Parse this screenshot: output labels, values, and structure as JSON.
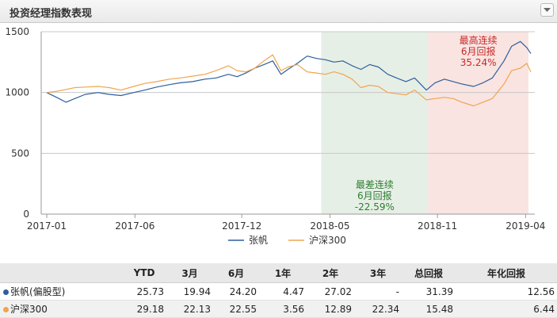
{
  "panel": {
    "title": "投资经理指数表现"
  },
  "chart_data": {
    "type": "line",
    "x_ticks": [
      "2017-01",
      "2017-06",
      "2017-12",
      "2018-05",
      "2018-11",
      "2019-04"
    ],
    "x_range": [
      "2017-01-03",
      "2019-04-12"
    ],
    "ylim": [
      0,
      1500
    ],
    "y_ticks": [
      0,
      500,
      1000,
      1500
    ],
    "grid": "horizontal",
    "legend_position": "bottom",
    "series": [
      {
        "name": "张帆",
        "color": "#2c5f9e",
        "points": [
          [
            "2017-01-03",
            1000
          ],
          [
            "2017-01-20",
            960
          ],
          [
            "2017-02-05",
            920
          ],
          [
            "2017-02-20",
            950
          ],
          [
            "2017-03-10",
            985
          ],
          [
            "2017-04-01",
            1000
          ],
          [
            "2017-04-20",
            985
          ],
          [
            "2017-05-10",
            975
          ],
          [
            "2017-06-01",
            1000
          ],
          [
            "2017-06-20",
            1020
          ],
          [
            "2017-07-10",
            1045
          ],
          [
            "2017-08-01",
            1065
          ],
          [
            "2017-08-20",
            1080
          ],
          [
            "2017-09-10",
            1090
          ],
          [
            "2017-10-01",
            1110
          ],
          [
            "2017-10-20",
            1120
          ],
          [
            "2017-11-10",
            1150
          ],
          [
            "2017-11-25",
            1130
          ],
          [
            "2017-12-10",
            1160
          ],
          [
            "2017-12-25",
            1200
          ],
          [
            "2018-01-10",
            1230
          ],
          [
            "2018-01-25",
            1260
          ],
          [
            "2018-02-08",
            1150
          ],
          [
            "2018-02-20",
            1190
          ],
          [
            "2018-03-08",
            1240
          ],
          [
            "2018-03-25",
            1300
          ],
          [
            "2018-04-10",
            1280
          ],
          [
            "2018-04-25",
            1270
          ],
          [
            "2018-05-10",
            1250
          ],
          [
            "2018-05-25",
            1260
          ],
          [
            "2018-06-10",
            1220
          ],
          [
            "2018-06-25",
            1190
          ],
          [
            "2018-07-10",
            1230
          ],
          [
            "2018-07-25",
            1210
          ],
          [
            "2018-08-10",
            1150
          ],
          [
            "2018-08-25",
            1120
          ],
          [
            "2018-09-10",
            1090
          ],
          [
            "2018-09-25",
            1120
          ],
          [
            "2018-10-15",
            1020
          ],
          [
            "2018-10-30",
            1080
          ],
          [
            "2018-11-15",
            1110
          ],
          [
            "2018-11-30",
            1090
          ],
          [
            "2018-12-15",
            1070
          ],
          [
            "2019-01-04",
            1050
          ],
          [
            "2019-01-20",
            1080
          ],
          [
            "2019-02-05",
            1120
          ],
          [
            "2019-02-25",
            1260
          ],
          [
            "2019-03-10",
            1380
          ],
          [
            "2019-03-25",
            1420
          ],
          [
            "2019-04-05",
            1370
          ],
          [
            "2019-04-12",
            1320
          ]
        ]
      },
      {
        "name": "沪深300",
        "color": "#f0a550",
        "points": [
          [
            "2017-01-03",
            1000
          ],
          [
            "2017-01-20",
            1010
          ],
          [
            "2017-02-05",
            1025
          ],
          [
            "2017-02-20",
            1040
          ],
          [
            "2017-03-10",
            1045
          ],
          [
            "2017-04-01",
            1050
          ],
          [
            "2017-04-20",
            1040
          ],
          [
            "2017-05-10",
            1020
          ],
          [
            "2017-06-01",
            1050
          ],
          [
            "2017-06-20",
            1075
          ],
          [
            "2017-07-10",
            1090
          ],
          [
            "2017-08-01",
            1110
          ],
          [
            "2017-08-20",
            1120
          ],
          [
            "2017-09-10",
            1135
          ],
          [
            "2017-10-01",
            1150
          ],
          [
            "2017-10-20",
            1180
          ],
          [
            "2017-11-10",
            1220
          ],
          [
            "2017-11-25",
            1180
          ],
          [
            "2017-12-10",
            1170
          ],
          [
            "2017-12-25",
            1200
          ],
          [
            "2018-01-10",
            1260
          ],
          [
            "2018-01-25",
            1310
          ],
          [
            "2018-02-08",
            1180
          ],
          [
            "2018-02-20",
            1210
          ],
          [
            "2018-03-08",
            1230
          ],
          [
            "2018-03-25",
            1170
          ],
          [
            "2018-04-10",
            1160
          ],
          [
            "2018-04-25",
            1150
          ],
          [
            "2018-05-10",
            1170
          ],
          [
            "2018-05-25",
            1150
          ],
          [
            "2018-06-10",
            1110
          ],
          [
            "2018-06-25",
            1040
          ],
          [
            "2018-07-10",
            1060
          ],
          [
            "2018-07-25",
            1050
          ],
          [
            "2018-08-10",
            1000
          ],
          [
            "2018-08-25",
            990
          ],
          [
            "2018-09-10",
            980
          ],
          [
            "2018-09-25",
            1020
          ],
          [
            "2018-10-15",
            940
          ],
          [
            "2018-10-30",
            950
          ],
          [
            "2018-11-15",
            960
          ],
          [
            "2018-11-30",
            950
          ],
          [
            "2018-12-15",
            920
          ],
          [
            "2019-01-04",
            890
          ],
          [
            "2019-01-20",
            920
          ],
          [
            "2019-02-05",
            950
          ],
          [
            "2019-02-25",
            1070
          ],
          [
            "2019-03-10",
            1180
          ],
          [
            "2019-03-25",
            1200
          ],
          [
            "2019-04-05",
            1240
          ],
          [
            "2019-04-12",
            1170
          ]
        ]
      }
    ],
    "shaded_regions": [
      {
        "kind": "worst",
        "from": "2018-04-18",
        "to": "2018-10-18",
        "fill": "#e6efe6",
        "text_color": "#2e7d32",
        "label": [
          "最差连续",
          "6月回报",
          "-22.59%"
        ],
        "label_anchor": "bottom"
      },
      {
        "kind": "best",
        "from": "2018-10-18",
        "to": "2019-04-08",
        "fill": "#f9e4e1",
        "text_color": "#c62828",
        "label": [
          "最高连续",
          "6月回报",
          "35.24%"
        ],
        "label_anchor": "top"
      }
    ]
  },
  "legend": [
    {
      "label": "张帆",
      "color": "#2c5f9e"
    },
    {
      "label": "沪深300",
      "color": "#f0a550"
    }
  ],
  "table": {
    "headers": [
      "",
      "YTD",
      "3月",
      "6月",
      "1年",
      "2年",
      "3年",
      "总回报",
      "年化回报"
    ],
    "rows": [
      {
        "name": "张帆(偏股型)",
        "color": "#2c5f9e",
        "values": [
          "25.73",
          "19.94",
          "24.20",
          "4.47",
          "27.02",
          "-",
          "31.39",
          "12.56"
        ]
      },
      {
        "name": "沪深300",
        "color": "#f0a550",
        "values": [
          "29.18",
          "22.13",
          "22.55",
          "3.56",
          "12.89",
          "22.34",
          "15.48",
          "6.44"
        ]
      }
    ]
  }
}
